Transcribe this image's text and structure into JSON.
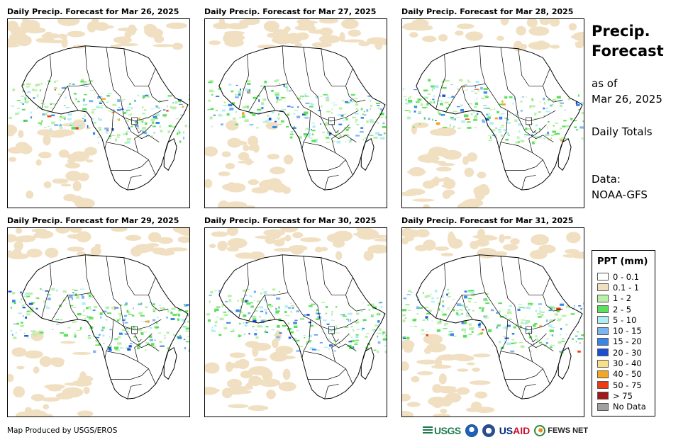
{
  "panels": [
    {
      "title": "Daily Precip. Forecast for Mar 26, 2025"
    },
    {
      "title": "Daily Precip. Forecast for Mar 27, 2025"
    },
    {
      "title": "Daily Precip. Forecast for Mar 28, 2025"
    },
    {
      "title": "Daily Precip. Forecast for Mar 29, 2025"
    },
    {
      "title": "Daily Precip. Forecast for Mar 30, 2025"
    },
    {
      "title": "Daily Precip. Forecast for Mar 31, 2025"
    }
  ],
  "sidebar": {
    "title_line1": "Precip.",
    "title_line2": "Forecast",
    "asof_line1": "as of",
    "asof_line2": "Mar 26, 2025",
    "daily": "Daily Totals",
    "data_line1": "Data:",
    "data_line2": "NOAA-GFS"
  },
  "legend": {
    "title": "PPT (mm)",
    "items": [
      {
        "label": "0 - 0.1",
        "color": "#ffffff"
      },
      {
        "label": "0.1 - 1",
        "color": "#f0dfc0"
      },
      {
        "label": "1 - 2",
        "color": "#b8f0a8"
      },
      {
        "label": "2 - 5",
        "color": "#5ce05c"
      },
      {
        "label": "5 - 10",
        "color": "#b0eef4"
      },
      {
        "label": "10 - 15",
        "color": "#7ab6f0"
      },
      {
        "label": "15 - 20",
        "color": "#3a86e8"
      },
      {
        "label": "20 - 30",
        "color": "#1a4fd0"
      },
      {
        "label": "30 - 40",
        "color": "#f8e08a"
      },
      {
        "label": "40 - 50",
        "color": "#f5a623"
      },
      {
        "label": "50 - 75",
        "color": "#ee3a12"
      },
      {
        "label": "> 75",
        "color": "#a01818"
      },
      {
        "label": "No Data",
        "color": "#a0a0a0"
      }
    ]
  },
  "footer": {
    "credit": "Map Produced by USGS/EROS",
    "logo_usgs": "USGS",
    "logo_usaid_a": "US",
    "logo_usaid_b": "AID",
    "logo_fews": "FEWS NET"
  }
}
